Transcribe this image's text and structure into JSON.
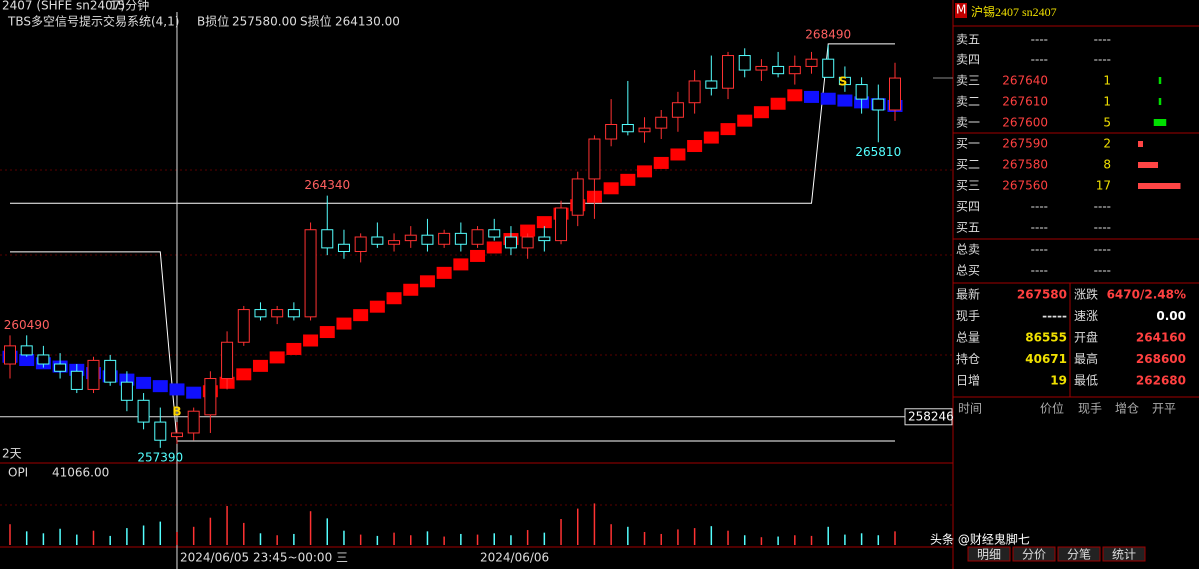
{
  "header": {
    "symbol": "2407 (SHFE sn2407)",
    "period": "15分钟",
    "indicator": "TBS多空信号提示交易系统(4,1)",
    "b_stop_label": "B损位",
    "b_stop": {
      "value": 257580,
      "label": "257580.00"
    },
    "s_stop_label": "S损位",
    "s_stop": {
      "value": 264130,
      "label": "264130.00"
    }
  },
  "chart": {
    "type": "candlestick",
    "ylim": [
      257000,
      269400
    ],
    "colors": {
      "up": "#ff3232",
      "down": "#54ffff",
      "band_up": "#ff0000",
      "band_down": "#1010ff",
      "stop_line": "#ffffff"
    },
    "candles": [
      [
        259700,
        260490,
        259300,
        260200
      ],
      [
        260200,
        260490,
        259900,
        259950
      ],
      [
        259950,
        260200,
        259600,
        259700
      ],
      [
        259700,
        260000,
        259300,
        259500
      ],
      [
        259500,
        259700,
        258900,
        259000
      ],
      [
        259000,
        259900,
        258900,
        259800
      ],
      [
        259800,
        259950,
        259100,
        259200
      ],
      [
        259200,
        259500,
        258400,
        258700
      ],
      [
        258700,
        258900,
        257900,
        258100
      ],
      [
        258100,
        258500,
        257390,
        257600
      ],
      [
        257700,
        258100,
        257500,
        257800
      ],
      [
        257800,
        258500,
        257600,
        258400
      ],
      [
        258300,
        259500,
        257800,
        259300
      ],
      [
        259300,
        260600,
        259000,
        260300
      ],
      [
        260300,
        261300,
        260200,
        261200
      ],
      [
        261200,
        261400,
        260900,
        261000
      ],
      [
        261000,
        261300,
        260800,
        261200
      ],
      [
        261200,
        261400,
        260900,
        261000
      ],
      [
        261000,
        263600,
        260900,
        263400
      ],
      [
        263400,
        264340,
        262700,
        262900
      ],
      [
        263000,
        263400,
        262600,
        262800
      ],
      [
        262800,
        263300,
        262500,
        263200
      ],
      [
        263200,
        263600,
        262900,
        263000
      ],
      [
        263000,
        263300,
        262800,
        263100
      ],
      [
        263100,
        263500,
        262900,
        263250
      ],
      [
        263250,
        263700,
        262800,
        263000
      ],
      [
        263000,
        263400,
        262900,
        263300
      ],
      [
        263300,
        263600,
        262800,
        263000
      ],
      [
        263000,
        263500,
        262900,
        263400
      ],
      [
        263400,
        263700,
        263100,
        263200
      ],
      [
        263200,
        263500,
        262700,
        262900
      ],
      [
        262900,
        263300,
        262600,
        263200
      ],
      [
        263200,
        263500,
        262800,
        263100
      ],
      [
        263100,
        264200,
        263000,
        264000
      ],
      [
        263800,
        265000,
        263500,
        264800
      ],
      [
        264800,
        266000,
        263700,
        265900
      ],
      [
        265900,
        267000,
        265700,
        266300
      ],
      [
        266300,
        267500,
        266000,
        266100
      ],
      [
        266100,
        266500,
        265800,
        266200
      ],
      [
        266200,
        266700,
        265900,
        266500
      ],
      [
        266500,
        267200,
        266100,
        266900
      ],
      [
        266900,
        267800,
        266600,
        267500
      ],
      [
        267500,
        268200,
        267100,
        267300
      ],
      [
        267300,
        268300,
        267000,
        268200
      ],
      [
        268200,
        268400,
        267600,
        267800
      ],
      [
        267800,
        268100,
        267500,
        267900
      ],
      [
        267900,
        268300,
        267600,
        267700
      ],
      [
        267700,
        268200,
        267400,
        267900
      ],
      [
        267900,
        268300,
        267700,
        268100
      ],
      [
        268100,
        268490,
        267600,
        267600
      ],
      [
        267600,
        267900,
        267200,
        267400
      ],
      [
        267400,
        267600,
        266600,
        267000
      ],
      [
        267000,
        267400,
        265810,
        266700
      ],
      [
        266700,
        268000,
        266400,
        267580
      ]
    ],
    "band": [
      259900,
      259810,
      259720,
      259630,
      259540,
      259450,
      259360,
      259270,
      259180,
      259090,
      259000,
      258910,
      258950,
      259183,
      259416,
      259649,
      259882,
      260115,
      260348,
      260581,
      260814,
      261047,
      261280,
      261513,
      261746,
      261979,
      262212,
      262445,
      262678,
      262911,
      263144,
      263377,
      263610,
      263843,
      264076,
      264309,
      264542,
      264775,
      265008,
      265241,
      265474,
      265707,
      265940,
      266173,
      266406,
      266639,
      266872,
      267105,
      267060,
      267010,
      266960,
      266910,
      266860,
      266810
    ],
    "b_line": [
      262790,
      262790,
      262790,
      262790,
      262790,
      262790,
      262790,
      262790,
      262790,
      262790,
      257580,
      257580,
      257580,
      257580,
      257580,
      257580,
      257580,
      257580,
      257580,
      257580,
      257580,
      257580,
      257580,
      257580,
      257580,
      257580,
      257580,
      257580,
      257580,
      257580,
      257580,
      257580,
      257580,
      257580,
      257580,
      257580,
      257580,
      257580,
      257580,
      257580,
      257580,
      257580,
      257580,
      257580,
      257580,
      257580,
      257580,
      257580,
      257580,
      257580,
      257580,
      257580,
      257580,
      257580
    ],
    "s_line": [
      264130,
      264130,
      264130,
      264130,
      264130,
      264130,
      264130,
      264130,
      264130,
      264130,
      264130,
      264130,
      264130,
      264130,
      264130,
      264130,
      264130,
      264130,
      264130,
      264130,
      264130,
      264130,
      264130,
      264130,
      264130,
      264130,
      264130,
      264130,
      264130,
      264130,
      264130,
      264130,
      264130,
      264130,
      264130,
      264130,
      264130,
      264130,
      264130,
      264130,
      264130,
      264130,
      264130,
      264130,
      264130,
      264130,
      264130,
      264130,
      264130,
      268520,
      268520,
      268520,
      268520,
      268520
    ],
    "signals": [
      "B",
      "S"
    ],
    "crosshair_price": 258246,
    "days_label": "2天",
    "sub_label": "OPI",
    "sub_value": "41066.00",
    "volume_ylim": [
      0,
      10000
    ],
    "volumes": [
      3200,
      2100,
      1800,
      2500,
      1600,
      2200,
      1400,
      2600,
      3000,
      3600,
      2000,
      2800,
      4200,
      6000,
      3400,
      1800,
      1500,
      1700,
      5200,
      4100,
      2200,
      1600,
      1400,
      1900,
      1500,
      2100,
      1300,
      1700,
      1600,
      1800,
      1500,
      2300,
      1900,
      4000,
      5600,
      6400,
      3200,
      2800,
      2000,
      1700,
      2400,
      2600,
      2900,
      2200,
      1500,
      1200,
      1300,
      1500,
      1400,
      2800,
      1600,
      1800,
      1500,
      2100
    ],
    "dates": [
      "2024/06/05 23:45~00:00 三",
      "2024/06/06"
    ]
  },
  "quote": {
    "icon": "M",
    "title": "沪锡2407  sn2407",
    "book": [
      {
        "label": "卖五",
        "price": "----",
        "qty": "----"
      },
      {
        "label": "卖四",
        "price": "----",
        "qty": "----"
      },
      {
        "label": "卖三",
        "price": "267640",
        "qty": 1
      },
      {
        "label": "卖二",
        "price": "267610",
        "qty": 1
      },
      {
        "label": "卖一",
        "price": "267600",
        "qty": 5
      },
      {
        "label": "买一",
        "price": "267590",
        "qty": 2
      },
      {
        "label": "买二",
        "price": "267580",
        "qty": 8
      },
      {
        "label": "买三",
        "price": "267560",
        "qty": 17
      },
      {
        "label": "买四",
        "price": "----",
        "qty": "----"
      },
      {
        "label": "买五",
        "price": "----",
        "qty": "----"
      }
    ],
    "totals": [
      {
        "label": "总卖",
        "a": "----",
        "b": "----"
      },
      {
        "label": "总买",
        "a": "----",
        "b": "----"
      }
    ],
    "stats": [
      [
        "最新",
        "267580",
        "涨跌",
        "6470/2.48%"
      ],
      [
        "现手",
        "-----",
        "速涨",
        "0.00"
      ],
      [
        "总量",
        "86555",
        "开盘",
        "264160"
      ],
      [
        "持仓",
        "40671",
        "最高",
        "268600"
      ],
      [
        "日增",
        "19",
        "最低",
        "262680"
      ]
    ],
    "trade_header": [
      "时间",
      "价位",
      "现手",
      "增仓",
      "开平"
    ],
    "tabs": [
      "明细",
      "分价",
      "分笔",
      "统计"
    ]
  },
  "watermark": "头条 @财经鬼脚七"
}
